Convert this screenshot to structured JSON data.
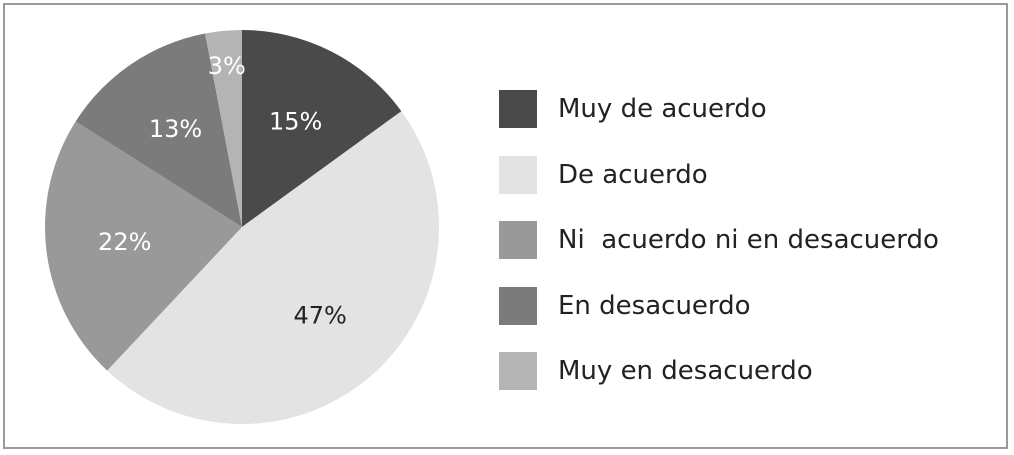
{
  "chart_data": {
    "type": "pie",
    "title": "",
    "slices": [
      {
        "label": "Muy de acuerdo",
        "value": 15,
        "value_label": "15%",
        "color": "#4a4a4a",
        "text_color": "#ffffff"
      },
      {
        "label": "De acuerdo",
        "value": 47,
        "value_label": "47%",
        "color": "#e3e3e3",
        "text_color": "#222222"
      },
      {
        "label": "Ni  acuerdo ni en desacuerdo",
        "value": 22,
        "value_label": "22%",
        "color": "#999999",
        "text_color": "#ffffff"
      },
      {
        "label": "En desacuerdo",
        "value": 13,
        "value_label": "13%",
        "color": "#7b7b7b",
        "text_color": "#ffffff"
      },
      {
        "label": "Muy en desacuerdo",
        "value": 3,
        "value_label": "3%",
        "color": "#b4b4b4",
        "text_color": "#ffffff"
      }
    ],
    "legend_position": "right"
  }
}
